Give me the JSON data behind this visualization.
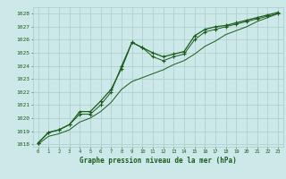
{
  "title": "Graphe pression niveau de la mer (hPa)",
  "bg_color": "#cce8e8",
  "grid_color": "#aacccc",
  "line_color": "#1a5c1a",
  "xlim": [
    -0.5,
    23.5
  ],
  "ylim": [
    1017.8,
    1028.5
  ],
  "yticks": [
    1018,
    1019,
    1020,
    1021,
    1022,
    1023,
    1024,
    1025,
    1026,
    1027,
    1028
  ],
  "xticks": [
    0,
    1,
    2,
    3,
    4,
    5,
    6,
    7,
    8,
    9,
    10,
    11,
    12,
    13,
    14,
    15,
    16,
    17,
    18,
    19,
    20,
    21,
    22,
    23
  ],
  "s1_x": [
    0,
    1,
    2,
    3,
    4,
    5,
    6,
    7,
    8,
    9,
    10,
    11,
    12,
    13,
    14,
    15,
    16,
    17,
    18,
    19,
    20,
    21,
    22,
    23
  ],
  "s1_y": [
    1018.1,
    1018.9,
    1019.1,
    1019.5,
    1020.5,
    1020.5,
    1021.3,
    1022.2,
    1023.8,
    1025.8,
    1025.4,
    1025.0,
    1024.7,
    1024.9,
    1025.1,
    1026.3,
    1026.8,
    1027.0,
    1027.1,
    1027.3,
    1027.5,
    1027.7,
    1027.9,
    1028.1
  ],
  "s2_x": [
    0,
    1,
    2,
    3,
    4,
    5,
    6,
    7,
    8,
    9,
    10,
    11,
    12,
    13,
    14,
    15,
    16,
    17,
    18,
    19,
    20,
    21,
    22,
    23
  ],
  "s2_y": [
    1018.1,
    1018.9,
    1019.1,
    1019.5,
    1020.3,
    1020.3,
    1021.0,
    1022.0,
    1024.0,
    1025.8,
    1025.4,
    1024.7,
    1024.4,
    1024.7,
    1024.9,
    1026.0,
    1026.6,
    1026.8,
    1027.0,
    1027.2,
    1027.4,
    1027.6,
    1027.8,
    1028.0
  ],
  "s3_x": [
    0,
    1,
    2,
    3,
    4,
    5,
    6,
    7,
    8,
    9,
    10,
    11,
    12,
    13,
    14,
    15,
    16,
    17,
    18,
    19,
    20,
    21,
    22,
    23
  ],
  "s3_y": [
    1018.0,
    1018.6,
    1018.8,
    1019.1,
    1019.7,
    1020.0,
    1020.5,
    1021.2,
    1022.2,
    1022.8,
    1023.1,
    1023.4,
    1023.7,
    1024.1,
    1024.4,
    1024.9,
    1025.5,
    1025.9,
    1026.4,
    1026.7,
    1027.0,
    1027.4,
    1027.7,
    1028.0
  ]
}
